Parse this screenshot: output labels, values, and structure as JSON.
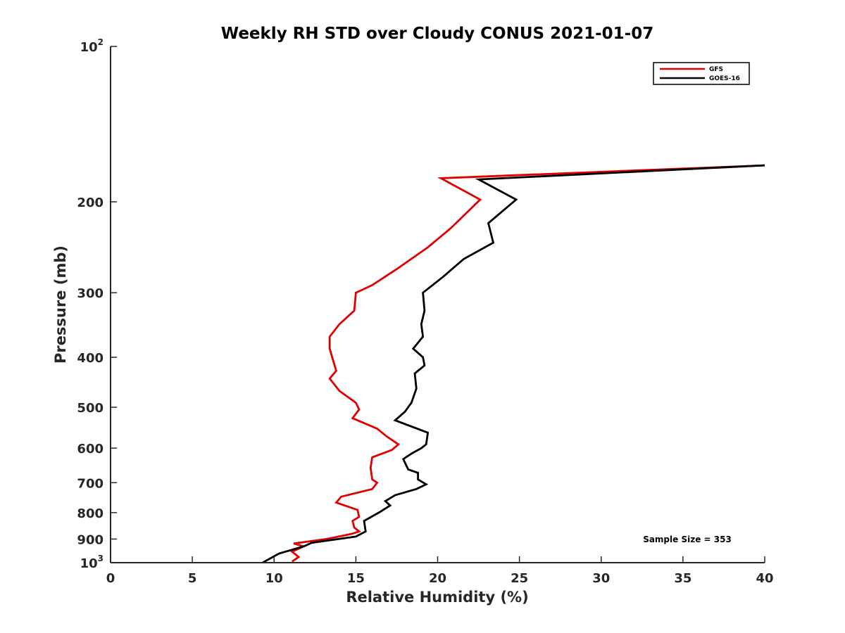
{
  "chart_data": {
    "type": "line",
    "title": "Weekly RH STD over Cloudy CONUS 2021-01-07",
    "xlabel": "Relative Humidity (%)",
    "ylabel": "Pressure (mb)",
    "xlim": [
      0,
      40
    ],
    "ylim": [
      100,
      1000
    ],
    "y_scale": "log",
    "y_reversed": true,
    "x_ticks": [
      "0",
      "5",
      "10",
      "15",
      "20",
      "25",
      "30",
      "35",
      "40"
    ],
    "y_ticks": [
      {
        "value": 100,
        "base": "10",
        "exp": "2"
      },
      {
        "value": 200,
        "base": "200",
        "exp": ""
      },
      {
        "value": 300,
        "base": "300",
        "exp": ""
      },
      {
        "value": 400,
        "base": "400",
        "exp": ""
      },
      {
        "value": 500,
        "base": "500",
        "exp": ""
      },
      {
        "value": 600,
        "base": "600",
        "exp": ""
      },
      {
        "value": 700,
        "base": "700",
        "exp": ""
      },
      {
        "value": 800,
        "base": "800",
        "exp": ""
      },
      {
        "value": 900,
        "base": "900",
        "exp": ""
      },
      {
        "value": 1000,
        "base": "10",
        "exp": "3"
      }
    ],
    "grid": false,
    "legend_position": "top-right",
    "annotation": "Sample Size = 353",
    "series": [
      {
        "name": "GFS",
        "color": "#e00000",
        "points": [
          [
            40.0,
            170
          ],
          [
            20.2,
            180
          ],
          [
            22.6,
            198
          ],
          [
            20.8,
            225
          ],
          [
            19.4,
            245
          ],
          [
            17.5,
            270
          ],
          [
            16.0,
            290
          ],
          [
            15.0,
            300
          ],
          [
            14.9,
            325
          ],
          [
            14.0,
            345
          ],
          [
            13.4,
            365
          ],
          [
            13.4,
            385
          ],
          [
            13.6,
            405
          ],
          [
            13.8,
            425
          ],
          [
            13.4,
            440
          ],
          [
            14.0,
            465
          ],
          [
            15.0,
            490
          ],
          [
            15.2,
            505
          ],
          [
            14.8,
            525
          ],
          [
            16.3,
            550
          ],
          [
            16.9,
            570
          ],
          [
            17.6,
            590
          ],
          [
            17.2,
            605
          ],
          [
            16.0,
            625
          ],
          [
            15.9,
            655
          ],
          [
            16.0,
            690
          ],
          [
            16.3,
            700
          ],
          [
            16.0,
            720
          ],
          [
            14.1,
            745
          ],
          [
            13.8,
            765
          ],
          [
            15.1,
            790
          ],
          [
            15.2,
            815
          ],
          [
            14.8,
            830
          ],
          [
            14.9,
            855
          ],
          [
            15.2,
            870
          ],
          [
            14.7,
            880
          ],
          [
            13.2,
            900
          ],
          [
            11.2,
            918
          ],
          [
            11.8,
            930
          ],
          [
            11.1,
            952
          ],
          [
            11.5,
            975
          ],
          [
            11.1,
            995
          ]
        ]
      },
      {
        "name": "GOES-16",
        "color": "#000000",
        "points": [
          [
            40.0,
            170
          ],
          [
            22.5,
            181
          ],
          [
            24.8,
            198
          ],
          [
            23.1,
            220
          ],
          [
            23.4,
            240
          ],
          [
            21.6,
            258
          ],
          [
            20.3,
            280
          ],
          [
            19.1,
            300
          ],
          [
            19.2,
            325
          ],
          [
            19.0,
            345
          ],
          [
            19.1,
            365
          ],
          [
            18.5,
            385
          ],
          [
            19.1,
            400
          ],
          [
            19.2,
            415
          ],
          [
            18.6,
            430
          ],
          [
            18.7,
            460
          ],
          [
            18.4,
            490
          ],
          [
            18.0,
            510
          ],
          [
            17.4,
            530
          ],
          [
            19.4,
            560
          ],
          [
            19.3,
            590
          ],
          [
            19.0,
            600
          ],
          [
            18.4,
            615
          ],
          [
            17.9,
            630
          ],
          [
            18.2,
            660
          ],
          [
            18.8,
            670
          ],
          [
            18.8,
            690
          ],
          [
            19.3,
            705
          ],
          [
            18.7,
            720
          ],
          [
            17.4,
            740
          ],
          [
            16.8,
            760
          ],
          [
            17.1,
            775
          ],
          [
            16.4,
            800
          ],
          [
            15.5,
            830
          ],
          [
            15.6,
            870
          ],
          [
            15.0,
            890
          ],
          [
            12.3,
            915
          ],
          [
            11.8,
            930
          ],
          [
            10.3,
            960
          ],
          [
            9.3,
            1000
          ]
        ]
      }
    ]
  }
}
